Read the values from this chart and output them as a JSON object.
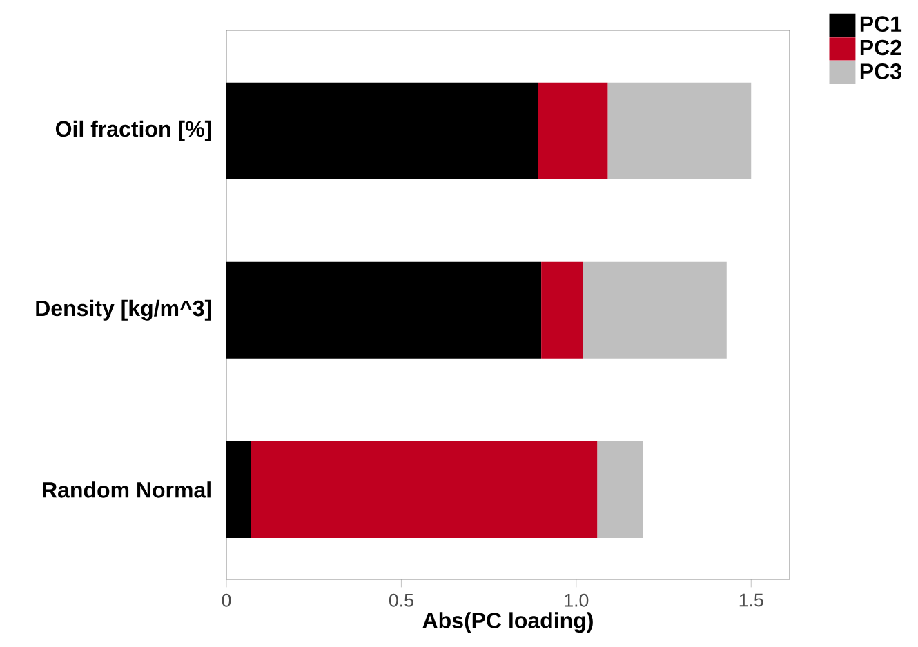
{
  "chart_data": {
    "type": "bar",
    "orientation": "horizontal",
    "stacked": true,
    "categories": [
      "Oil fraction [%]",
      "Density [kg/m^3]",
      "Random Normal"
    ],
    "series": [
      {
        "name": "PC1",
        "color": "#000000",
        "values": [
          0.89,
          0.9,
          0.07
        ]
      },
      {
        "name": "PC2",
        "color": "#c00020",
        "values": [
          0.2,
          0.12,
          0.99
        ]
      },
      {
        "name": "PC3",
        "color": "#bfbfbf",
        "values": [
          0.41,
          0.41,
          0.13
        ]
      }
    ],
    "xlabel": "Abs(PC loading)",
    "xlim": [
      0,
      1.61
    ],
    "xticks": [
      0,
      0.5,
      {
        "value": 1,
        "label": "1.0"
      },
      1.5
    ],
    "legend": "top right",
    "grid": false
  }
}
